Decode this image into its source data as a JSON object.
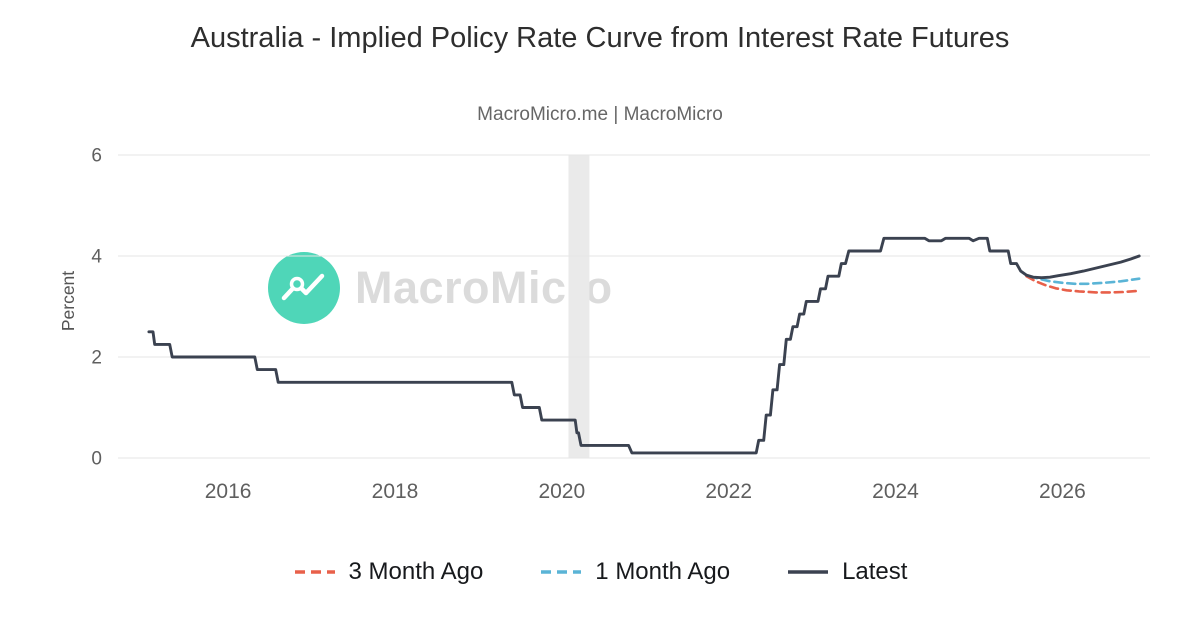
{
  "page": {
    "title": "Australia - Implied Policy Rate Curve from Interest Rate Futures",
    "subtitle": "MacroMicro.me | MacroMicro",
    "watermark_text": "MacroMicro"
  },
  "chart_data": {
    "type": "line",
    "title": "Australia - Implied Policy Rate Curve from Interest Rate Futures",
    "subtitle": "MacroMicro.me | MacroMicro",
    "xlabel": "",
    "ylabel": "Percent",
    "xlim": [
      2014.68,
      2027.05
    ],
    "ylim": [
      0,
      6
    ],
    "x_ticks": [
      2016,
      2018,
      2020,
      2022,
      2024,
      2026
    ],
    "y_ticks": [
      0,
      2,
      4,
      6
    ],
    "grid": "horizontal",
    "legend_position": "bottom",
    "gridline_color": "#e5e5e5",
    "tick_label_color": "#5f5f5f",
    "recession_band": {
      "x_start": 2020.08,
      "x_end": 2020.33,
      "color": "#eaeaea"
    },
    "series": [
      {
        "name": "3 Month Ago",
        "color": "#e8604a",
        "dash": true,
        "points": [
          [
            2025.57,
            3.6
          ],
          [
            2025.68,
            3.5
          ],
          [
            2025.8,
            3.42
          ],
          [
            2025.92,
            3.36
          ],
          [
            2026.05,
            3.32
          ],
          [
            2026.2,
            3.3
          ],
          [
            2026.4,
            3.28
          ],
          [
            2026.6,
            3.28
          ],
          [
            2026.75,
            3.29
          ],
          [
            2026.92,
            3.31
          ]
        ]
      },
      {
        "name": "1 Month Ago",
        "color": "#5ab4d6",
        "dash": true,
        "points": [
          [
            2025.6,
            3.6
          ],
          [
            2025.72,
            3.55
          ],
          [
            2025.85,
            3.5
          ],
          [
            2026.0,
            3.47
          ],
          [
            2026.15,
            3.45
          ],
          [
            2026.3,
            3.45
          ],
          [
            2026.5,
            3.47
          ],
          [
            2026.7,
            3.5
          ],
          [
            2026.92,
            3.55
          ]
        ]
      },
      {
        "name": "Latest",
        "color": "#3b4250",
        "dash": false,
        "points": [
          [
            2015.05,
            2.5
          ],
          [
            2015.1,
            2.5
          ],
          [
            2015.12,
            2.25
          ],
          [
            2015.3,
            2.25
          ],
          [
            2015.33,
            2.0
          ],
          [
            2016.32,
            2.0
          ],
          [
            2016.35,
            1.75
          ],
          [
            2016.57,
            1.75
          ],
          [
            2016.6,
            1.5
          ],
          [
            2019.4,
            1.5
          ],
          [
            2019.43,
            1.25
          ],
          [
            2019.5,
            1.25
          ],
          [
            2019.53,
            1.0
          ],
          [
            2019.73,
            1.0
          ],
          [
            2019.76,
            0.75
          ],
          [
            2020.16,
            0.75
          ],
          [
            2020.18,
            0.5
          ],
          [
            2020.2,
            0.5
          ],
          [
            2020.23,
            0.25
          ],
          [
            2020.8,
            0.25
          ],
          [
            2020.84,
            0.1
          ],
          [
            2022.33,
            0.1
          ],
          [
            2022.36,
            0.35
          ],
          [
            2022.42,
            0.35
          ],
          [
            2022.45,
            0.85
          ],
          [
            2022.5,
            0.85
          ],
          [
            2022.53,
            1.35
          ],
          [
            2022.58,
            1.35
          ],
          [
            2022.61,
            1.85
          ],
          [
            2022.66,
            1.85
          ],
          [
            2022.69,
            2.35
          ],
          [
            2022.74,
            2.35
          ],
          [
            2022.77,
            2.6
          ],
          [
            2022.82,
            2.6
          ],
          [
            2022.85,
            2.85
          ],
          [
            2022.9,
            2.85
          ],
          [
            2022.93,
            3.1
          ],
          [
            2023.07,
            3.1
          ],
          [
            2023.1,
            3.35
          ],
          [
            2023.16,
            3.35
          ],
          [
            2023.19,
            3.6
          ],
          [
            2023.32,
            3.6
          ],
          [
            2023.35,
            3.85
          ],
          [
            2023.4,
            3.85
          ],
          [
            2023.44,
            4.1
          ],
          [
            2023.82,
            4.1
          ],
          [
            2023.86,
            4.35
          ],
          [
            2024.35,
            4.35
          ],
          [
            2024.4,
            4.3
          ],
          [
            2024.55,
            4.3
          ],
          [
            2024.6,
            4.35
          ],
          [
            2024.88,
            4.35
          ],
          [
            2024.93,
            4.3
          ],
          [
            2025.0,
            4.35
          ],
          [
            2025.1,
            4.35
          ],
          [
            2025.13,
            4.1
          ],
          [
            2025.35,
            4.1
          ],
          [
            2025.38,
            3.85
          ],
          [
            2025.45,
            3.85
          ],
          [
            2025.5,
            3.7
          ],
          [
            2025.57,
            3.62
          ],
          [
            2025.65,
            3.58
          ],
          [
            2025.75,
            3.57
          ],
          [
            2025.85,
            3.58
          ],
          [
            2025.95,
            3.61
          ],
          [
            2026.1,
            3.65
          ],
          [
            2026.25,
            3.7
          ],
          [
            2026.4,
            3.76
          ],
          [
            2026.55,
            3.82
          ],
          [
            2026.7,
            3.88
          ],
          [
            2026.82,
            3.94
          ],
          [
            2026.92,
            4.0
          ]
        ]
      }
    ]
  }
}
